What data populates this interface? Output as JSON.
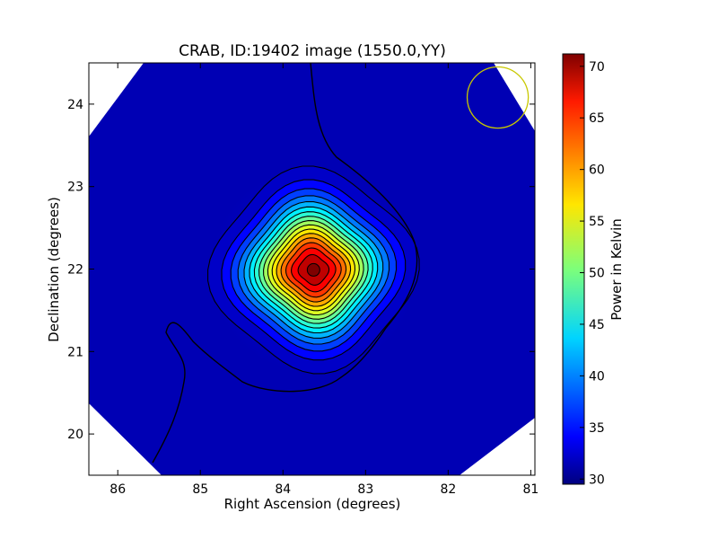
{
  "chart_data": {
    "type": "heatmap",
    "title": "CRAB, ID:19402 image (1550.0,YY)",
    "xlabel": "Right Ascension (degrees)",
    "ylabel": "Declination (degrees)",
    "x_reversed": true,
    "xlim": [
      86.35,
      80.95
    ],
    "ylim": [
      19.5,
      24.5
    ],
    "xticks": [
      86,
      85,
      84,
      83,
      82,
      81
    ],
    "yticks": [
      20,
      21,
      22,
      23,
      24
    ],
    "colorbar": {
      "label": "Power in Kelvin",
      "colormap": "jet",
      "range": [
        29.5,
        71.2
      ],
      "ticks": [
        30,
        35,
        40,
        45,
        50,
        55,
        60,
        65,
        70
      ]
    },
    "source": {
      "ra": 83.63,
      "dec": 21.99,
      "peak_value": 71
    },
    "background_value": 30,
    "beam_marker": {
      "ra": 81.4,
      "dec": 24.08,
      "radius_deg": 0.37,
      "color": "#c8c800"
    },
    "contour_count": 16,
    "grid": false
  }
}
